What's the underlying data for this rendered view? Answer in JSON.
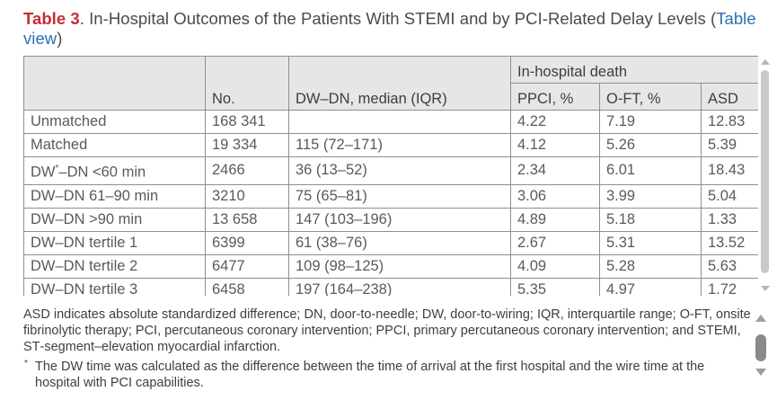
{
  "title": {
    "label": "Table 3",
    "text": ". In‐Hospital Outcomes of the Patients With STEMI and by PCI‐Related Delay Levels (",
    "link": "Table view",
    "close": ")"
  },
  "table": {
    "group_header": "In‐hospital death",
    "headers": [
      "",
      "No.",
      "DW–DN, median (IQR)",
      "PPCI, %",
      "O‐FT, %",
      "ASD"
    ],
    "rows": [
      [
        "Unmatched",
        "168 341",
        "",
        "4.22",
        "7.19",
        "12.83"
      ],
      [
        "Matched",
        "19 334",
        "115 (72–171)",
        "4.12",
        "5.26",
        "5.39"
      ],
      [
        "DW*–DN <60 min",
        "2466",
        "36 (13–52)",
        "2.34",
        "6.01",
        "18.43"
      ],
      [
        "DW–DN 61–90 min",
        "3210",
        "75 (65–81)",
        "3.06",
        "3.99",
        "5.04"
      ],
      [
        "DW–DN >90 min",
        "13 658",
        "147 (103–196)",
        "4.89",
        "5.18",
        "1.33"
      ],
      [
        "DW–DN tertile 1",
        "6399",
        "61 (38–76)",
        "2.67",
        "5.31",
        "13.52"
      ],
      [
        "DW–DN tertile 2",
        "6477",
        "109 (98–125)",
        "4.09",
        "5.28",
        "5.63"
      ],
      [
        "DW–DN tertile 3",
        "6458",
        "197 (164–238)",
        "5.35",
        "4.97",
        "1.72"
      ]
    ]
  },
  "footnotes": {
    "abbreviations": "ASD indicates absolute standardized difference; DN, door‐to‐needle; DW, door‐to‐wiring; IQR, interquartile range; O‐FT, onsite fibrinolytic therapy; PCI, percutaneous coronary intervention; PPCI, primary percutaneous coronary intervention; and STEMI, ST‐segment–elevation myocardial infarction.",
    "marker": "*",
    "dw_note": "The DW time was calculated as the difference between the time of arrival at the first hospital and the wire time at the hospital with PCI capabilities."
  },
  "colors": {
    "label": "#c62d36",
    "link": "#2a6fb3",
    "header_bg": "#e6e6e6"
  }
}
